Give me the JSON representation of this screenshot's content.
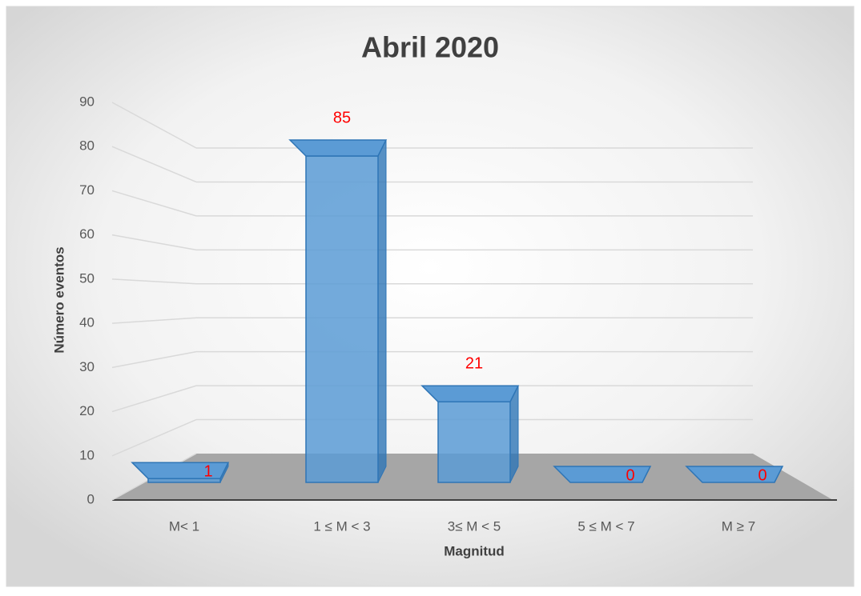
{
  "chart_data": {
    "type": "bar3d",
    "title": "Abril 2020",
    "x_label": "Magnitud",
    "y_label": "Número eventos",
    "categories": [
      "M< 1",
      "1 ≤ M < 3",
      "3≤ M < 5",
      "5 ≤ M < 7",
      "M ≥ 7"
    ],
    "values": [
      1,
      85,
      21,
      0,
      0
    ],
    "color": "#5b9bd5",
    "label_color": "#ff0000",
    "ylim": [
      0,
      90
    ],
    "yticks": [
      0,
      10,
      20,
      30,
      40,
      50,
      60,
      70,
      80,
      90
    ],
    "grid": true
  }
}
